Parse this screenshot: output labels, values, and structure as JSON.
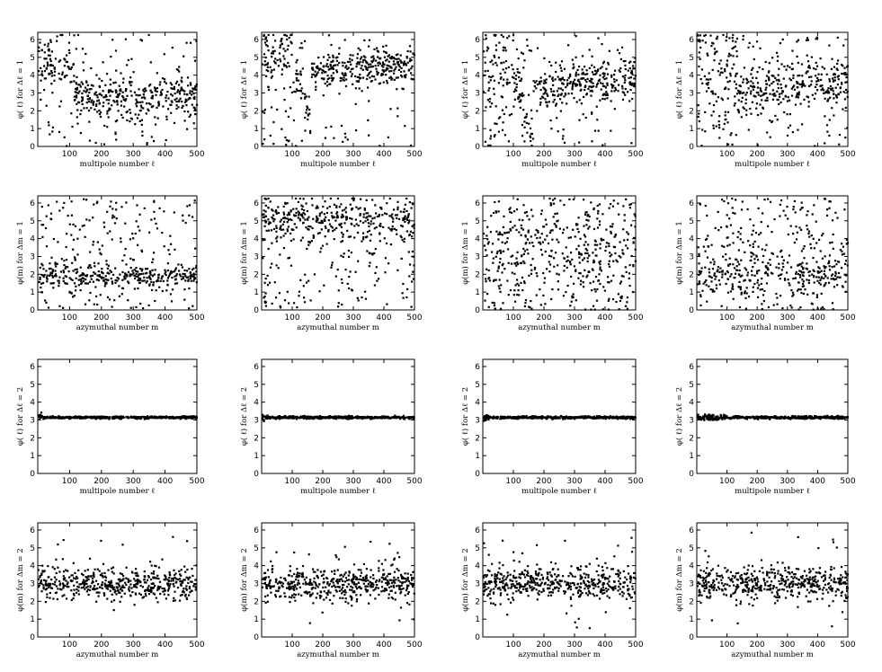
{
  "chart_data": [
    {
      "type": "scatter",
      "xlabel": "multipole number  ℓ",
      "ylabel": "φ( ℓ) for Δℓ = 1",
      "ylim": [
        0,
        6.4
      ],
      "xlim": [
        0,
        500
      ],
      "x_ticks": [
        100,
        200,
        300,
        400,
        500
      ],
      "y_ticks": [
        0,
        1,
        2,
        3,
        4,
        5,
        6
      ],
      "pattern": "row1_a",
      "seed": 11
    },
    {
      "type": "scatter",
      "xlabel": "multipole number  ℓ",
      "ylabel": "φ( ℓ) for Δℓ = 1",
      "ylim": [
        0,
        6.4
      ],
      "xlim": [
        0,
        500
      ],
      "x_ticks": [
        100,
        200,
        300,
        400,
        500
      ],
      "y_ticks": [
        0,
        1,
        2,
        3,
        4,
        5,
        6
      ],
      "pattern": "row1_b",
      "seed": 23
    },
    {
      "type": "scatter",
      "xlabel": "multipole number  ℓ",
      "ylabel": "φ( ℓ) for Δℓ = 1",
      "ylim": [
        0,
        6.4
      ],
      "xlim": [
        0,
        500
      ],
      "x_ticks": [
        100,
        200,
        300,
        400,
        500
      ],
      "y_ticks": [
        0,
        1,
        2,
        3,
        4,
        5,
        6
      ],
      "pattern": "row1_c",
      "seed": 37
    },
    {
      "type": "scatter",
      "xlabel": "multipole number  ℓ",
      "ylabel": "φ( ℓ) for Δℓ = 1",
      "ylim": [
        0,
        6.4
      ],
      "xlim": [
        0,
        500
      ],
      "x_ticks": [
        100,
        200,
        300,
        400,
        500
      ],
      "y_ticks": [
        0,
        1,
        2,
        3,
        4,
        5,
        6
      ],
      "pattern": "row1_d",
      "seed": 41
    },
    {
      "type": "scatter",
      "xlabel": "azymuthal number  m",
      "ylabel": "φ(m) for Δm = 1",
      "ylim": [
        0,
        6.4
      ],
      "xlim": [
        0,
        500
      ],
      "x_ticks": [
        100,
        200,
        300,
        400,
        500
      ],
      "y_ticks": [
        0,
        1,
        2,
        3,
        4,
        5,
        6
      ],
      "pattern": "row2_a",
      "seed": 53
    },
    {
      "type": "scatter",
      "xlabel": "azymuthal number  m",
      "ylabel": "φ(m) for Δm = 1",
      "ylim": [
        0,
        6.4
      ],
      "xlim": [
        0,
        500
      ],
      "x_ticks": [
        100,
        200,
        300,
        400,
        500
      ],
      "y_ticks": [
        0,
        1,
        2,
        3,
        4,
        5,
        6
      ],
      "pattern": "row2_b",
      "seed": 67
    },
    {
      "type": "scatter",
      "xlabel": "azymuthal number  m",
      "ylabel": "φ(m) for Δm = 1",
      "ylim": [
        0,
        6.4
      ],
      "xlim": [
        0,
        500
      ],
      "x_ticks": [
        100,
        200,
        300,
        400,
        500
      ],
      "y_ticks": [
        0,
        1,
        2,
        3,
        4,
        5,
        6
      ],
      "pattern": "row2_c",
      "seed": 71
    },
    {
      "type": "scatter",
      "xlabel": "azymuthal number  m",
      "ylabel": "φ(m) for Δm = 1",
      "ylim": [
        0,
        6.4
      ],
      "xlim": [
        0,
        500
      ],
      "x_ticks": [
        100,
        200,
        300,
        400,
        500
      ],
      "y_ticks": [
        0,
        1,
        2,
        3,
        4,
        5,
        6
      ],
      "pattern": "row2_d",
      "seed": 83
    },
    {
      "type": "scatter",
      "xlabel": "multipole number  ℓ",
      "ylabel": "φ( ℓ) for Δℓ = 2",
      "ylim": [
        0,
        6.4
      ],
      "xlim": [
        0,
        500
      ],
      "x_ticks": [
        100,
        200,
        300,
        400,
        500
      ],
      "y_ticks": [
        0,
        1,
        2,
        3,
        4,
        5,
        6
      ],
      "pattern": "flat",
      "seed": 97
    },
    {
      "type": "scatter",
      "xlabel": "multipole number  ℓ",
      "ylabel": "φ( ℓ) for Δℓ = 2",
      "ylim": [
        0,
        6.4
      ],
      "xlim": [
        0,
        500
      ],
      "x_ticks": [
        100,
        200,
        300,
        400,
        500
      ],
      "y_ticks": [
        0,
        1,
        2,
        3,
        4,
        5,
        6
      ],
      "pattern": "flat",
      "seed": 101
    },
    {
      "type": "scatter",
      "xlabel": "multipole number  ℓ",
      "ylabel": "φ( ℓ) for Δℓ = 2",
      "ylim": [
        0,
        6.4
      ],
      "xlim": [
        0,
        500
      ],
      "x_ticks": [
        100,
        200,
        300,
        400,
        500
      ],
      "y_ticks": [
        0,
        1,
        2,
        3,
        4,
        5,
        6
      ],
      "pattern": "flat",
      "seed": 107
    },
    {
      "type": "scatter",
      "xlabel": "multipole number  ℓ",
      "ylabel": "φ( ℓ) for Δℓ = 2",
      "ylim": [
        0,
        6.4
      ],
      "xlim": [
        0,
        500
      ],
      "x_ticks": [
        100,
        200,
        300,
        400,
        500
      ],
      "y_ticks": [
        0,
        1,
        2,
        3,
        4,
        5,
        6
      ],
      "pattern": "flat_wide",
      "seed": 113
    },
    {
      "type": "scatter",
      "xlabel": "azymuthal number  m",
      "ylabel": "φ(m) for Δm = 2",
      "ylim": [
        0,
        6.4
      ],
      "xlim": [
        0,
        500
      ],
      "x_ticks": [
        100,
        200,
        300,
        400,
        500
      ],
      "y_ticks": [
        0,
        1,
        2,
        3,
        4,
        5,
        6
      ],
      "pattern": "row4",
      "seed": 127
    },
    {
      "type": "scatter",
      "xlabel": "azymuthal number  m",
      "ylabel": "φ(m) for Δm = 2",
      "ylim": [
        0,
        6.4
      ],
      "xlim": [
        0,
        500
      ],
      "x_ticks": [
        100,
        200,
        300,
        400,
        500
      ],
      "y_ticks": [
        0,
        1,
        2,
        3,
        4,
        5,
        6
      ],
      "pattern": "row4",
      "seed": 131
    },
    {
      "type": "scatter",
      "xlabel": "azymuthal number  m",
      "ylabel": "φ(m) for Δm = 2",
      "ylim": [
        0,
        6.4
      ],
      "xlim": [
        0,
        500
      ],
      "x_ticks": [
        100,
        200,
        300,
        400,
        500
      ],
      "y_ticks": [
        0,
        1,
        2,
        3,
        4,
        5,
        6
      ],
      "pattern": "row4",
      "seed": 137
    },
    {
      "type": "scatter",
      "xlabel": "azymuthal number  m",
      "ylabel": "φ(m) for Δm = 2",
      "ylim": [
        0,
        6.4
      ],
      "xlim": [
        0,
        500
      ],
      "x_ticks": [
        100,
        200,
        300,
        400,
        500
      ],
      "y_ticks": [
        0,
        1,
        2,
        3,
        4,
        5,
        6
      ],
      "pattern": "row4",
      "seed": 139
    }
  ]
}
